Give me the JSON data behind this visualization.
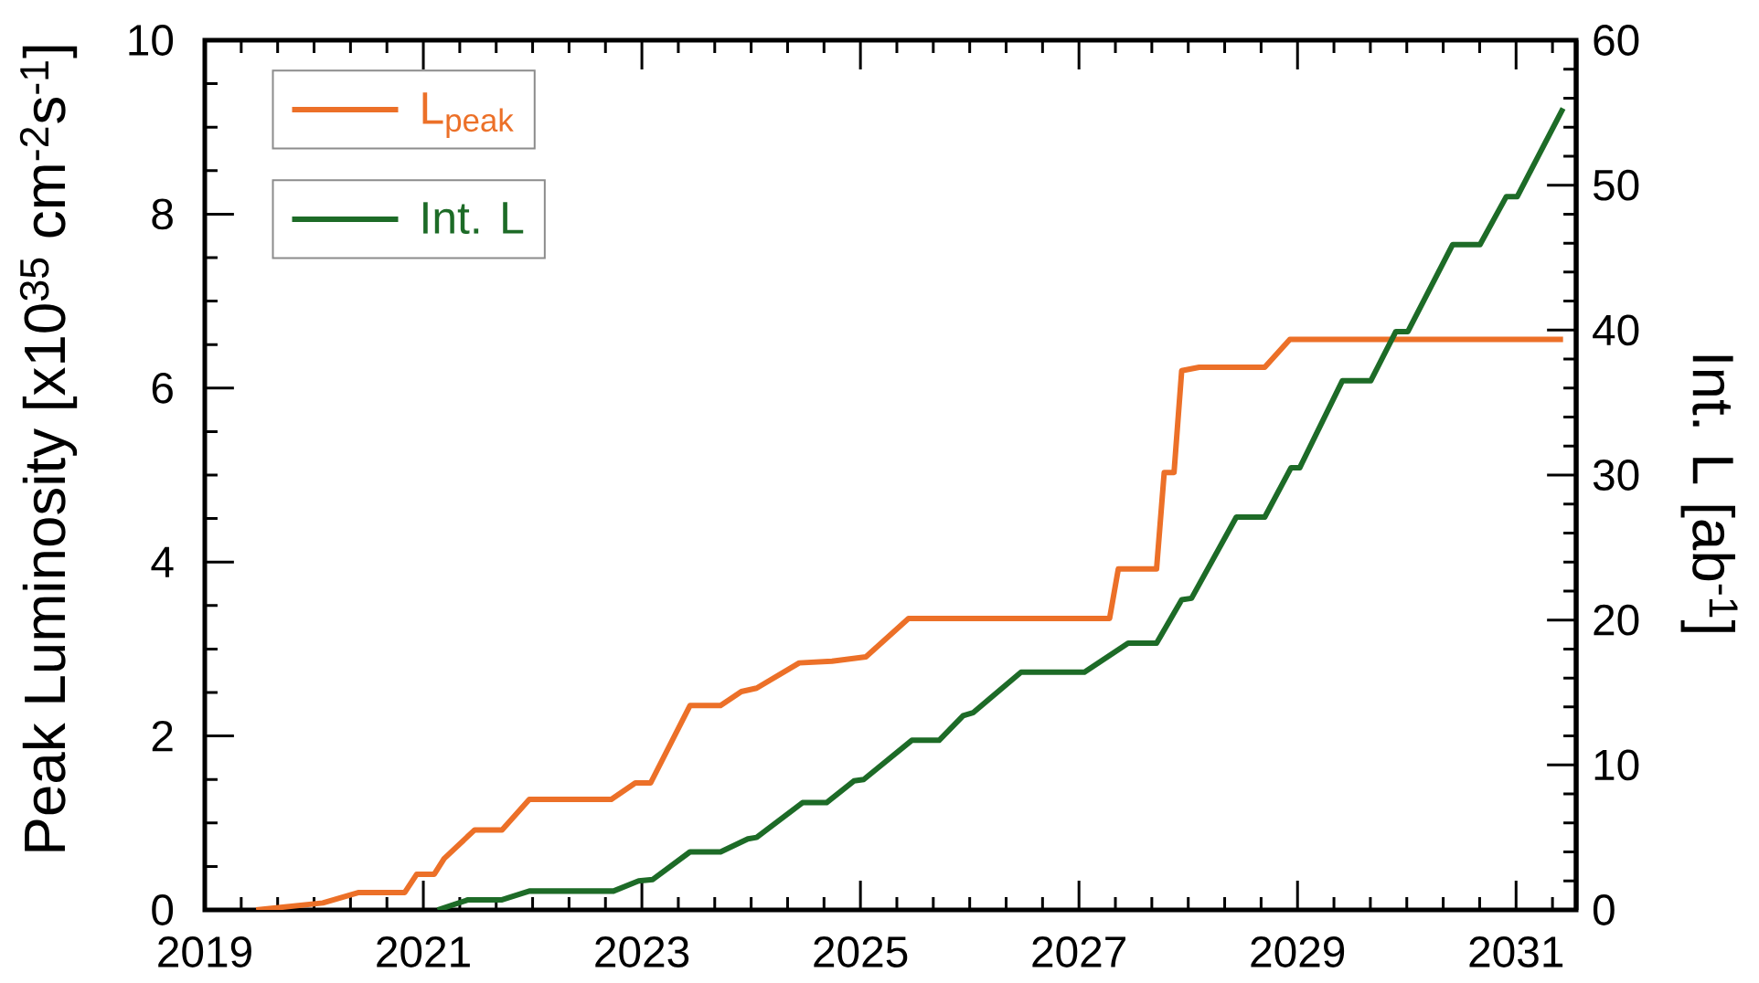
{
  "chart_data": {
    "type": "line",
    "ylabel": "Peak Luminosity [x10$^{35}$ cm$^{-2}$s$^{-1}$]",
    "y2label": "Int. L [ab$^{-1}$]",
    "xlim": [
      2019,
      2031.55
    ],
    "xticks": [
      2019,
      2021,
      2023,
      2025,
      2027,
      2029,
      2031
    ],
    "ylim": [
      0,
      10
    ],
    "yticks": [
      0,
      2,
      4,
      6,
      8,
      10
    ],
    "y2lim": [
      0,
      60
    ],
    "y2ticks": [
      0,
      10,
      20,
      30,
      40,
      50,
      60
    ],
    "legend": "top left",
    "series": [
      {
        "name": "L$_{peak}$",
        "color": "#ec7028",
        "x": [
          2019.47,
          2020.08,
          2020.41,
          2020.83,
          2020.94,
          2021.1,
          2021.19,
          2021.47,
          2021.72,
          2021.97,
          2022.72,
          2022.94,
          2023.08,
          2023.44,
          2023.72,
          2023.91,
          2024.05,
          2024.44,
          2024.74,
          2025.05,
          2025.44,
          2027.28,
          2027.36,
          2027.71,
          2027.78,
          2027.87,
          2027.94,
          2028.1,
          2028.7,
          2028.93,
          2031.43
        ],
        "values": [
          0,
          0.08,
          0.2,
          0.2,
          0.41,
          0.41,
          0.59,
          0.92,
          0.92,
          1.27,
          1.27,
          1.46,
          1.46,
          2.35,
          2.35,
          2.51,
          2.55,
          2.84,
          2.86,
          2.91,
          3.35,
          3.35,
          3.92,
          3.92,
          5.03,
          5.03,
          6.2,
          6.24,
          6.24,
          6.56,
          6.56
        ]
      },
      {
        "name": "Int. L",
        "color": "#1d6b27",
        "axis": "y2",
        "x": [
          2021.13,
          2021.41,
          2021.72,
          2021.97,
          2022.74,
          2022.97,
          2023.1,
          2023.44,
          2023.72,
          2023.97,
          2024.05,
          2024.47,
          2024.69,
          2024.94,
          2025.03,
          2025.47,
          2025.72,
          2025.94,
          2026.03,
          2026.47,
          2027.05,
          2027.45,
          2027.71,
          2027.94,
          2028.03,
          2028.44,
          2028.7,
          2028.94,
          2029.02,
          2029.41,
          2029.67,
          2029.9,
          2030.01,
          2030.42,
          2030.67,
          2030.91,
          2031.01,
          2031.43
        ],
        "values": [
          0,
          0.7,
          0.7,
          1.3,
          1.3,
          2.0,
          2.1,
          4.0,
          4.0,
          4.9,
          5.0,
          7.4,
          7.4,
          8.9,
          9.0,
          11.7,
          11.7,
          13.4,
          13.6,
          16.4,
          16.4,
          18.4,
          18.4,
          21.4,
          21.5,
          27.1,
          27.1,
          30.5,
          30.5,
          36.5,
          36.5,
          39.9,
          39.9,
          45.9,
          45.9,
          49.2,
          49.2,
          55.3
        ]
      }
    ]
  }
}
